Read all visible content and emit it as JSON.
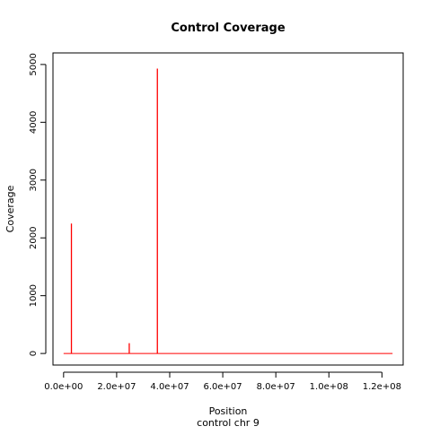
{
  "chart_data": {
    "type": "line",
    "title": "Control Coverage",
    "xlabel": "Position",
    "subtitle": "control chr 9",
    "ylabel": "Coverage",
    "xlim": [
      -4000000,
      128000000
    ],
    "ylim": [
      -200,
      5200
    ],
    "x_ticks": [
      0,
      20000000,
      40000000,
      60000000,
      80000000,
      100000000,
      120000000
    ],
    "x_tick_labels": [
      "0.0e+00",
      "2.0e+07",
      "4.0e+07",
      "6.0e+07",
      "8.0e+07",
      "1.0e+08",
      "1.2e+08"
    ],
    "y_ticks": [
      0,
      1000,
      2000,
      3000,
      4000,
      5000
    ],
    "y_tick_labels": [
      "0",
      "1000",
      "2000",
      "3000",
      "4000",
      "5000"
    ],
    "grid": false,
    "series": [
      {
        "color": "#ff0000",
        "x": [
          0,
          2900000,
          2900000,
          3000000,
          3000000,
          24700000,
          24700000,
          24800000,
          24800000,
          35300000,
          35300000,
          35400000,
          35400000,
          124000000
        ],
        "y": [
          0,
          0,
          2240,
          2240,
          0,
          0,
          170,
          170,
          0,
          0,
          4920,
          4920,
          0,
          0
        ]
      }
    ]
  }
}
